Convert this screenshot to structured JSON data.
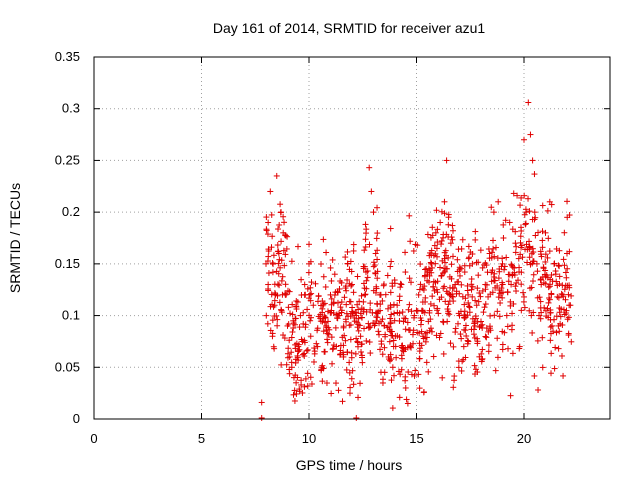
{
  "chart_data": {
    "type": "scatter",
    "title": "Day 161 of 2014, SRMTID for receiver azu1",
    "xlabel": "GPS time / hours",
    "ylabel": "SRMTID / TECUs",
    "xlim": [
      0,
      24
    ],
    "ylim": [
      0,
      0.35
    ],
    "grid": true,
    "marker": "+",
    "color": "#e00000",
    "x_ticks": [
      "0",
      "5",
      "10",
      "15",
      "20"
    ],
    "x_tick_values": [
      0,
      5,
      10,
      15,
      20
    ],
    "y_ticks": [
      "0",
      "0.05",
      "0.1",
      "0.15",
      "0.2",
      "0.25",
      "0.3",
      "0.35"
    ],
    "y_tick_values": [
      0,
      0.05,
      0.1,
      0.15,
      0.2,
      0.25,
      0.3,
      0.35
    ],
    "series": [
      {
        "name": "azu1",
        "x_range": [
          7.8,
          22.2
        ],
        "points": [
          [
            7.8,
            0.016
          ],
          [
            7.8,
            0.001
          ],
          [
            12.2,
            0.001
          ],
          [
            8.0,
            0.15
          ],
          [
            8.1,
            0.19
          ],
          [
            8.2,
            0.22
          ],
          [
            8.1,
            0.13
          ],
          [
            8.3,
            0.08
          ],
          [
            8.4,
            0.11
          ],
          [
            8.5,
            0.235
          ],
          [
            8.6,
            0.16
          ],
          [
            8.7,
            0.2
          ],
          [
            8.8,
            0.18
          ],
          [
            8.9,
            0.12
          ],
          [
            9.0,
            0.09
          ],
          [
            9.1,
            0.06
          ],
          [
            9.2,
            0.05
          ],
          [
            9.3,
            0.04
          ],
          [
            9.4,
            0.035
          ],
          [
            9.5,
            0.07
          ],
          [
            9.6,
            0.1
          ],
          [
            9.8,
            0.13
          ],
          [
            10.0,
            0.15
          ],
          [
            10.2,
            0.11
          ],
          [
            10.4,
            0.07
          ],
          [
            10.6,
            0.05
          ],
          [
            10.8,
            0.09
          ],
          [
            11.0,
            0.12
          ],
          [
            11.2,
            0.14
          ],
          [
            11.4,
            0.1
          ],
          [
            11.6,
            0.06
          ],
          [
            11.8,
            0.15
          ],
          [
            12.0,
            0.13
          ],
          [
            12.2,
            0.1
          ],
          [
            12.4,
            0.08
          ],
          [
            12.6,
            0.12
          ],
          [
            12.8,
            0.243
          ],
          [
            12.9,
            0.22
          ],
          [
            13.0,
            0.2
          ],
          [
            13.1,
            0.16
          ],
          [
            13.3,
            0.12
          ],
          [
            13.5,
            0.09
          ],
          [
            13.7,
            0.06
          ],
          [
            13.9,
            0.05
          ],
          [
            14.1,
            0.11
          ],
          [
            14.3,
            0.13
          ],
          [
            14.5,
            0.03
          ],
          [
            14.6,
            0.015
          ],
          [
            14.7,
            0.07
          ],
          [
            14.9,
            0.1
          ],
          [
            15.1,
            0.12
          ],
          [
            15.3,
            0.08
          ],
          [
            15.5,
            0.14
          ],
          [
            15.7,
            0.15
          ],
          [
            15.9,
            0.18
          ],
          [
            16.1,
            0.19
          ],
          [
            16.3,
            0.21
          ],
          [
            16.4,
            0.25
          ],
          [
            16.6,
            0.17
          ],
          [
            16.8,
            0.13
          ],
          [
            17.0,
            0.1
          ],
          [
            17.2,
            0.07
          ],
          [
            17.4,
            0.12
          ],
          [
            17.6,
            0.15
          ],
          [
            17.8,
            0.11
          ],
          [
            18.0,
            0.09
          ],
          [
            18.2,
            0.13
          ],
          [
            18.4,
            0.16
          ],
          [
            18.6,
            0.2
          ],
          [
            18.8,
            0.21
          ],
          [
            19.0,
            0.15
          ],
          [
            19.2,
            0.1
          ],
          [
            19.4,
            0.13
          ],
          [
            19.6,
            0.17
          ],
          [
            19.8,
            0.07
          ],
          [
            20.0,
            0.27
          ],
          [
            20.1,
            0.2
          ],
          [
            20.2,
            0.306
          ],
          [
            20.3,
            0.275
          ],
          [
            20.4,
            0.25
          ],
          [
            20.5,
            0.2
          ],
          [
            20.6,
            0.15
          ],
          [
            20.7,
            0.1
          ],
          [
            20.8,
            0.13
          ],
          [
            21.0,
            0.18
          ],
          [
            21.2,
            0.21
          ],
          [
            21.4,
            0.15
          ],
          [
            21.6,
            0.09
          ],
          [
            21.8,
            0.12
          ],
          [
            22.0,
            0.16
          ],
          [
            22.1,
            0.11
          ]
        ]
      }
    ]
  }
}
